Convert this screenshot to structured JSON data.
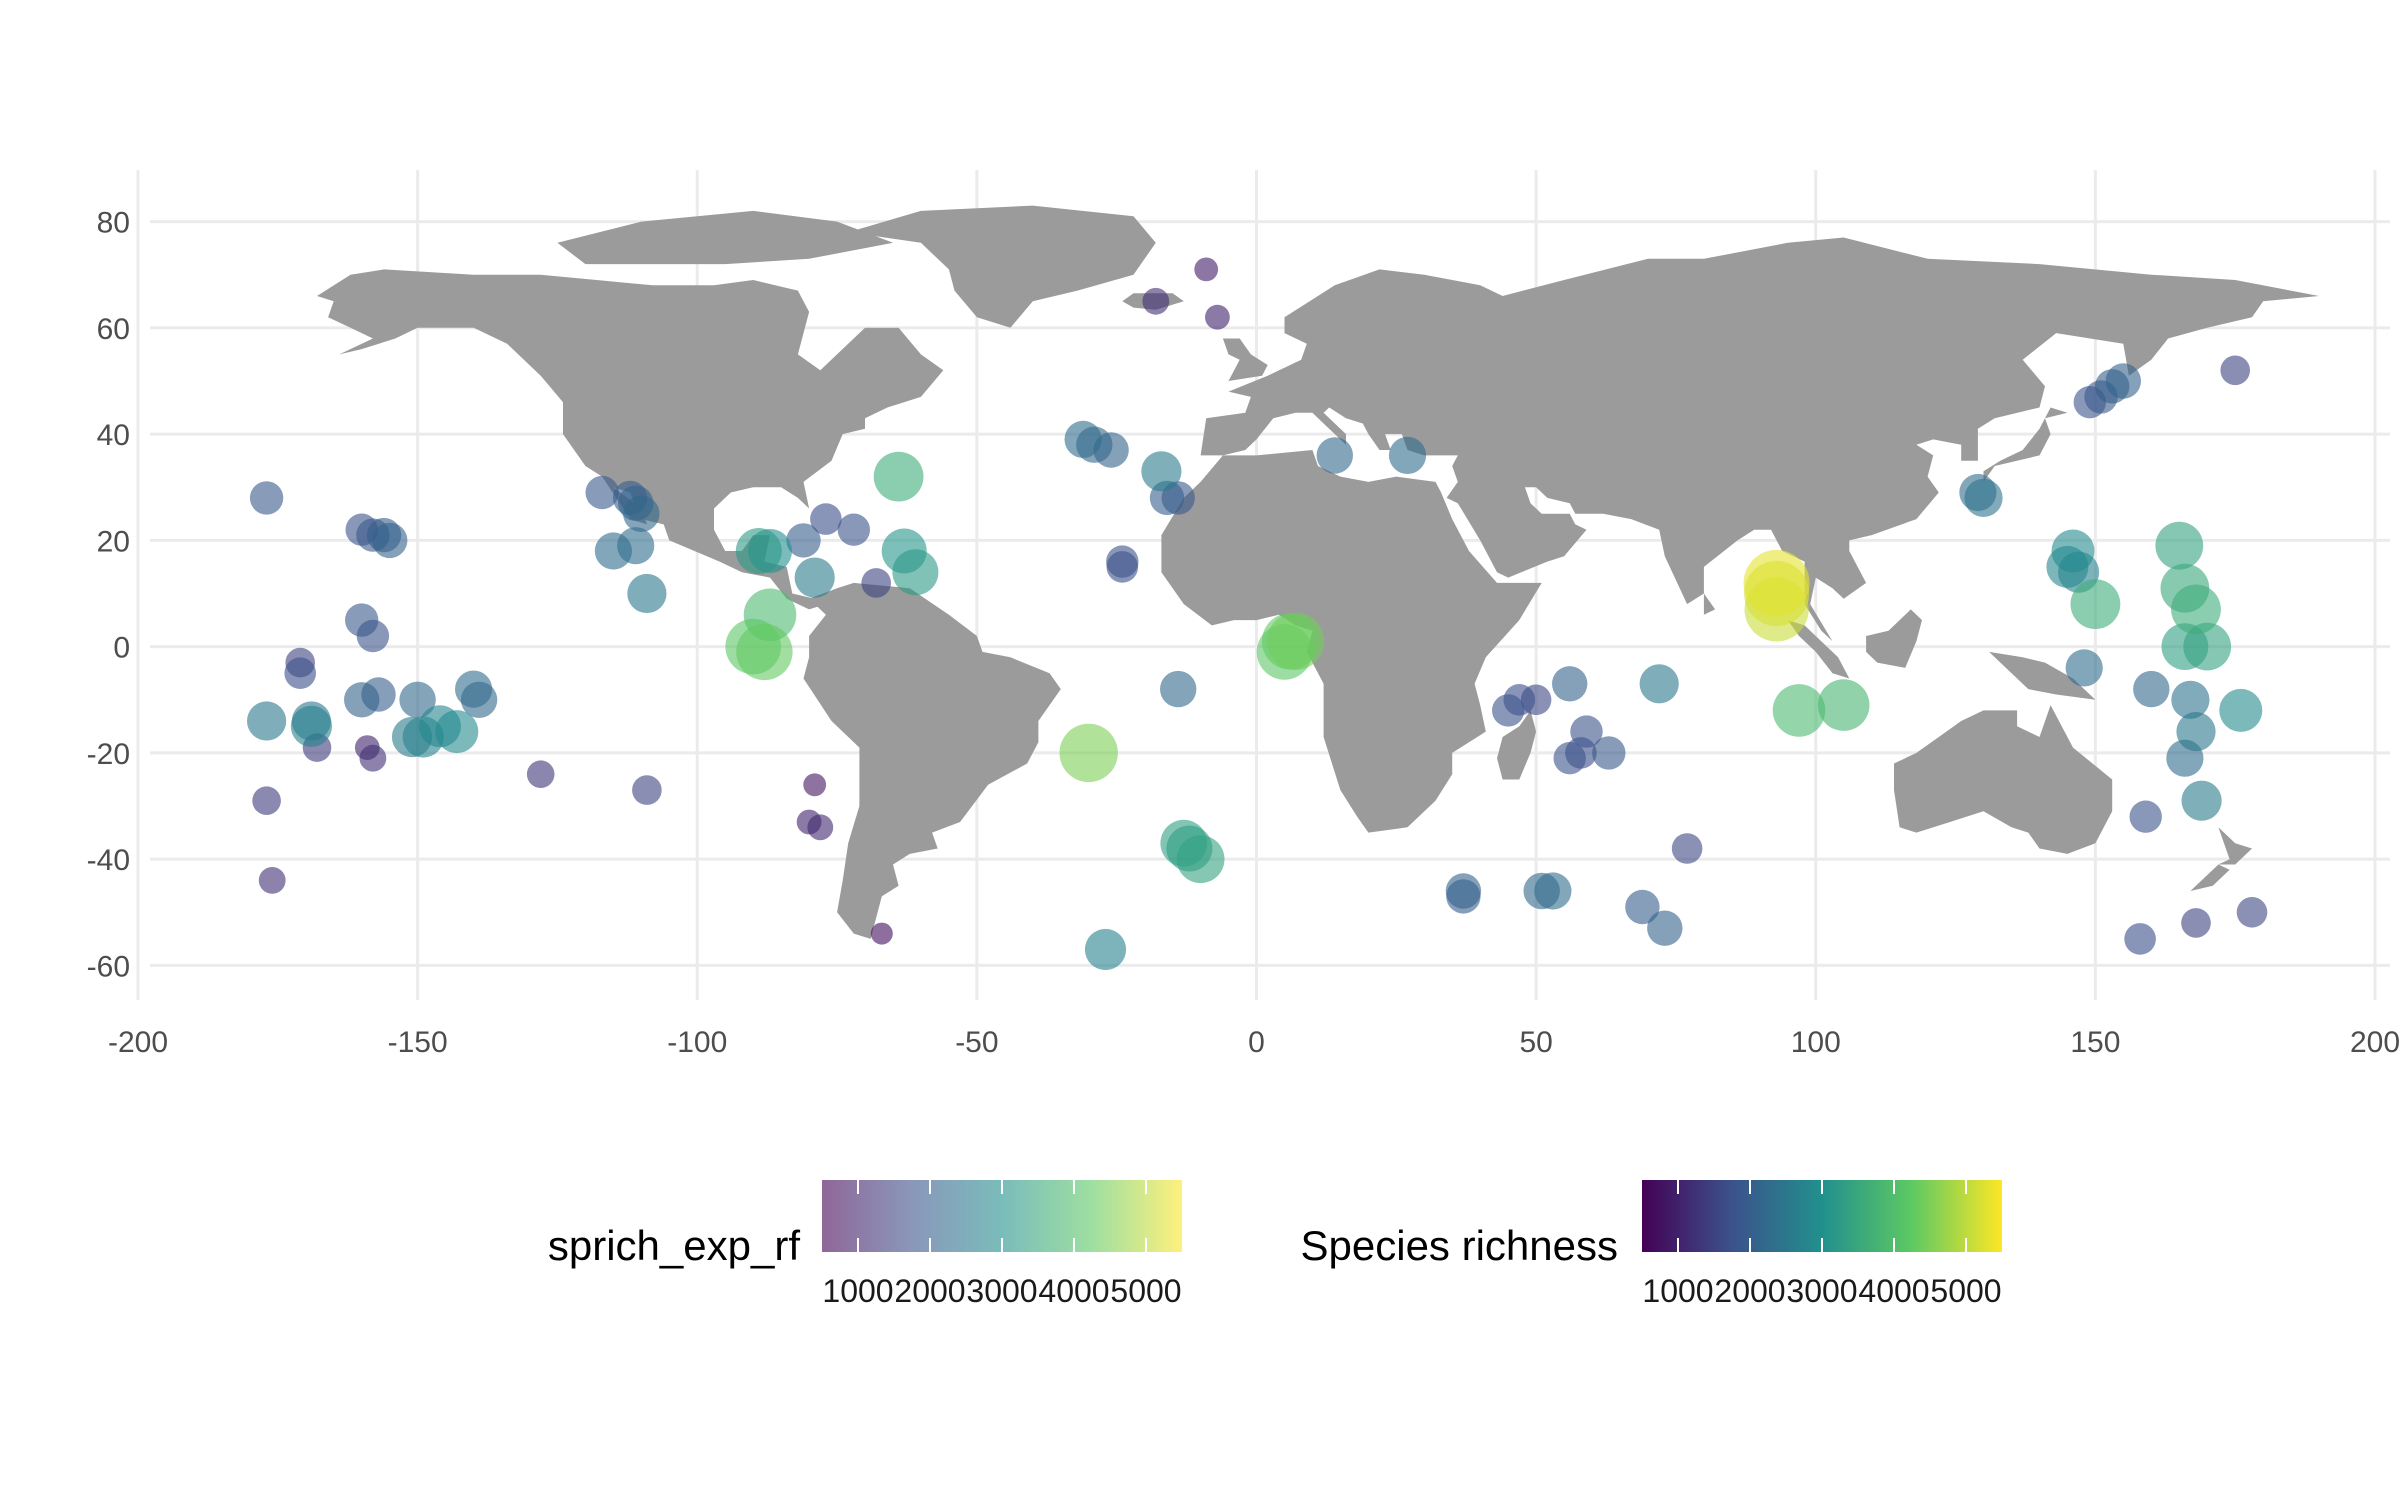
{
  "chart_data": {
    "type": "scatter",
    "title": "",
    "xlabel": "",
    "ylabel": "",
    "xlim": [
      -200,
      200
    ],
    "ylim": [
      -65,
      85
    ],
    "x_ticks": [
      -200,
      -150,
      -100,
      -50,
      0,
      50,
      100,
      150,
      200
    ],
    "y_ticks": [
      -60,
      -40,
      -20,
      0,
      20,
      40,
      60,
      80
    ],
    "x_tick_labels": [
      "-200",
      "-150",
      "-100",
      "-50",
      "0",
      "50",
      "100",
      "150",
      "200"
    ],
    "y_tick_labels": [
      "-60",
      "-40",
      "-20",
      "0",
      "20",
      "40",
      "60",
      "80"
    ],
    "grid": true,
    "basemap": "world land polygons (grey)",
    "land_color": "#9b9b9b",
    "legend_position": "bottom",
    "legends": [
      {
        "title": "sprich_exp_rf",
        "kind": "colorbar",
        "alpha": 0.6,
        "breaks": [
          "1000",
          "2000",
          "3000",
          "4000",
          "5000"
        ],
        "range": [
          500,
          5500
        ]
      },
      {
        "title": "Species richness",
        "kind": "colorbar",
        "alpha": 1.0,
        "breaks": [
          "1000",
          "2000",
          "3000",
          "4000",
          "5000"
        ],
        "range": [
          500,
          5500
        ]
      }
    ],
    "palette": [
      "#440154",
      "#3b528b",
      "#21908d",
      "#5dc963",
      "#fde725"
    ],
    "series": [
      {
        "columns": [
          "lon",
          "lat",
          "sprich_exp_rf",
          "species_richness"
        ],
        "points": [
          [
            -177,
            28,
            1900,
            1900
          ],
          [
            -177,
            -29,
            1400,
            1400
          ],
          [
            -176,
            -44,
            1200,
            1200
          ],
          [
            -177,
            -14,
            2500,
            2500
          ],
          [
            -171,
            -3,
            1500,
            1500
          ],
          [
            -171,
            -5,
            1700,
            1700
          ],
          [
            -169,
            -14,
            2500,
            2500
          ],
          [
            -169,
            -15,
            2700,
            2700
          ],
          [
            -168,
            -19,
            1400,
            1400
          ],
          [
            -160,
            22,
            1800,
            1800
          ],
          [
            -158,
            21,
            1900,
            1900
          ],
          [
            -156,
            21,
            2000,
            2000
          ],
          [
            -155,
            20,
            2100,
            2100
          ],
          [
            -160,
            5,
            1900,
            1900
          ],
          [
            -158,
            2,
            1800,
            1800
          ],
          [
            -157,
            -9,
            2000,
            2000
          ],
          [
            -160,
            -10,
            2100,
            2100
          ],
          [
            -159,
            -19,
            1000,
            1000
          ],
          [
            -158,
            -21,
            1200,
            1200
          ],
          [
            -150,
            -10,
            2200,
            2200
          ],
          [
            -151,
            -17,
            2600,
            2600
          ],
          [
            -149,
            -17,
            2700,
            2700
          ],
          [
            -146,
            -15,
            2800,
            2800
          ],
          [
            -143,
            -16,
            2900,
            2900
          ],
          [
            -140,
            -8,
            2300,
            2300
          ],
          [
            -139,
            -10,
            2200,
            2200
          ],
          [
            -128,
            -24,
            1300,
            1300
          ],
          [
            -117,
            29,
            1900,
            1900
          ],
          [
            -115,
            18,
            2300,
            2300
          ],
          [
            -112,
            28,
            2000,
            2000
          ],
          [
            -111,
            27,
            2100,
            2100
          ],
          [
            -110,
            25,
            2200,
            2200
          ],
          [
            -111,
            19,
            2300,
            2300
          ],
          [
            -109,
            10,
            2500,
            2500
          ],
          [
            -109,
            -27,
            1500,
            1500
          ],
          [
            -89,
            18,
            3200,
            3200
          ],
          [
            -87,
            18,
            3000,
            3000
          ],
          [
            -87,
            6,
            3900,
            3900
          ],
          [
            -90,
            0,
            4200,
            4200
          ],
          [
            -88,
            -1,
            4300,
            4300
          ],
          [
            -81,
            20,
            2000,
            2000
          ],
          [
            -79,
            13,
            2600,
            2600
          ],
          [
            -77,
            24,
            1700,
            1700
          ],
          [
            -72,
            22,
            1800,
            1800
          ],
          [
            -79,
            -26,
            800,
            800
          ],
          [
            -80,
            -33,
            1000,
            1000
          ],
          [
            -78,
            -34,
            1100,
            1100
          ],
          [
            -68,
            12,
            1500,
            1500
          ],
          [
            -67,
            -54,
            700,
            700
          ],
          [
            -64,
            32,
            3600,
            3600
          ],
          [
            -63,
            18,
            3100,
            3100
          ],
          [
            -61,
            14,
            3200,
            3200
          ],
          [
            -31,
            39,
            2300,
            2300
          ],
          [
            -29,
            38,
            2200,
            2200
          ],
          [
            -26,
            37,
            2100,
            2100
          ],
          [
            -30,
            -20,
            4500,
            4500
          ],
          [
            -27,
            -57,
            2700,
            2700
          ],
          [
            -24,
            16,
            1800,
            1800
          ],
          [
            -24,
            15,
            1700,
            1700
          ],
          [
            -17,
            33,
            2600,
            2600
          ],
          [
            -16,
            28,
            2000,
            2000
          ],
          [
            -14,
            28,
            1900,
            1900
          ],
          [
            -14,
            -8,
            2200,
            2200
          ],
          [
            -13,
            -37,
            3300,
            3300
          ],
          [
            -12,
            -38,
            3200,
            3200
          ],
          [
            -10,
            -40,
            3400,
            3400
          ],
          [
            -18,
            65,
            1200,
            1200
          ],
          [
            -9,
            71,
            900,
            900
          ],
          [
            -7,
            62,
            1000,
            1000
          ],
          [
            5,
            -1,
            4200,
            4200
          ],
          [
            6,
            1,
            4300,
            4300
          ],
          [
            7,
            1,
            4400,
            4400
          ],
          [
            14,
            36,
            2200,
            2200
          ],
          [
            27,
            36,
            2300,
            2300
          ],
          [
            37,
            -47,
            2000,
            2000
          ],
          [
            37,
            -46,
            2100,
            2100
          ],
          [
            45,
            -12,
            1800,
            1800
          ],
          [
            47,
            -10,
            1700,
            1700
          ],
          [
            50,
            -10,
            1600,
            1600
          ],
          [
            51,
            -46,
            2200,
            2200
          ],
          [
            53,
            -46,
            2300,
            2300
          ],
          [
            56,
            -7,
            2100,
            2100
          ],
          [
            56,
            -21,
            1800,
            1800
          ],
          [
            58,
            -20,
            1700,
            1700
          ],
          [
            59,
            -16,
            1800,
            1800
          ],
          [
            63,
            -20,
            1900,
            1900
          ],
          [
            69,
            -49,
            2000,
            2000
          ],
          [
            73,
            -53,
            2100,
            2100
          ],
          [
            72,
            -7,
            2500,
            2500
          ],
          [
            77,
            -38,
            1600,
            1600
          ],
          [
            93,
            12,
            5300,
            5300
          ],
          [
            93,
            10,
            5200,
            5200
          ],
          [
            93,
            7,
            5100,
            5100
          ],
          [
            97,
            -12,
            3900,
            3900
          ],
          [
            105,
            -11,
            3800,
            3800
          ],
          [
            129,
            29,
            2300,
            2300
          ],
          [
            130,
            28,
            2400,
            2400
          ],
          [
            145,
            15,
            2800,
            2800
          ],
          [
            146,
            18,
            2900,
            2900
          ],
          [
            147,
            14,
            2700,
            2700
          ],
          [
            149,
            46,
            1800,
            1800
          ],
          [
            151,
            47,
            1900,
            1900
          ],
          [
            153,
            49,
            2000,
            2000
          ],
          [
            155,
            50,
            2100,
            2100
          ],
          [
            150,
            8,
            3600,
            3600
          ],
          [
            148,
            -4,
            2300,
            2300
          ],
          [
            160,
            -8,
            2200,
            2200
          ],
          [
            165,
            19,
            3400,
            3400
          ],
          [
            166,
            11,
            3500,
            3500
          ],
          [
            168,
            7,
            3600,
            3600
          ],
          [
            166,
            0,
            3300,
            3300
          ],
          [
            170,
            0,
            3400,
            3400
          ],
          [
            167,
            -10,
            2400,
            2400
          ],
          [
            168,
            -16,
            2500,
            2500
          ],
          [
            166,
            -21,
            2300,
            2300
          ],
          [
            169,
            -29,
            2600,
            2600
          ],
          [
            159,
            -32,
            1800,
            1800
          ],
          [
            158,
            -55,
            1700,
            1700
          ],
          [
            168,
            -52,
            1500,
            1500
          ],
          [
            178,
            -50,
            1600,
            1600
          ],
          [
            175,
            52,
            1500,
            1500
          ],
          [
            176,
            -12,
            2900,
            2900
          ]
        ]
      }
    ]
  }
}
